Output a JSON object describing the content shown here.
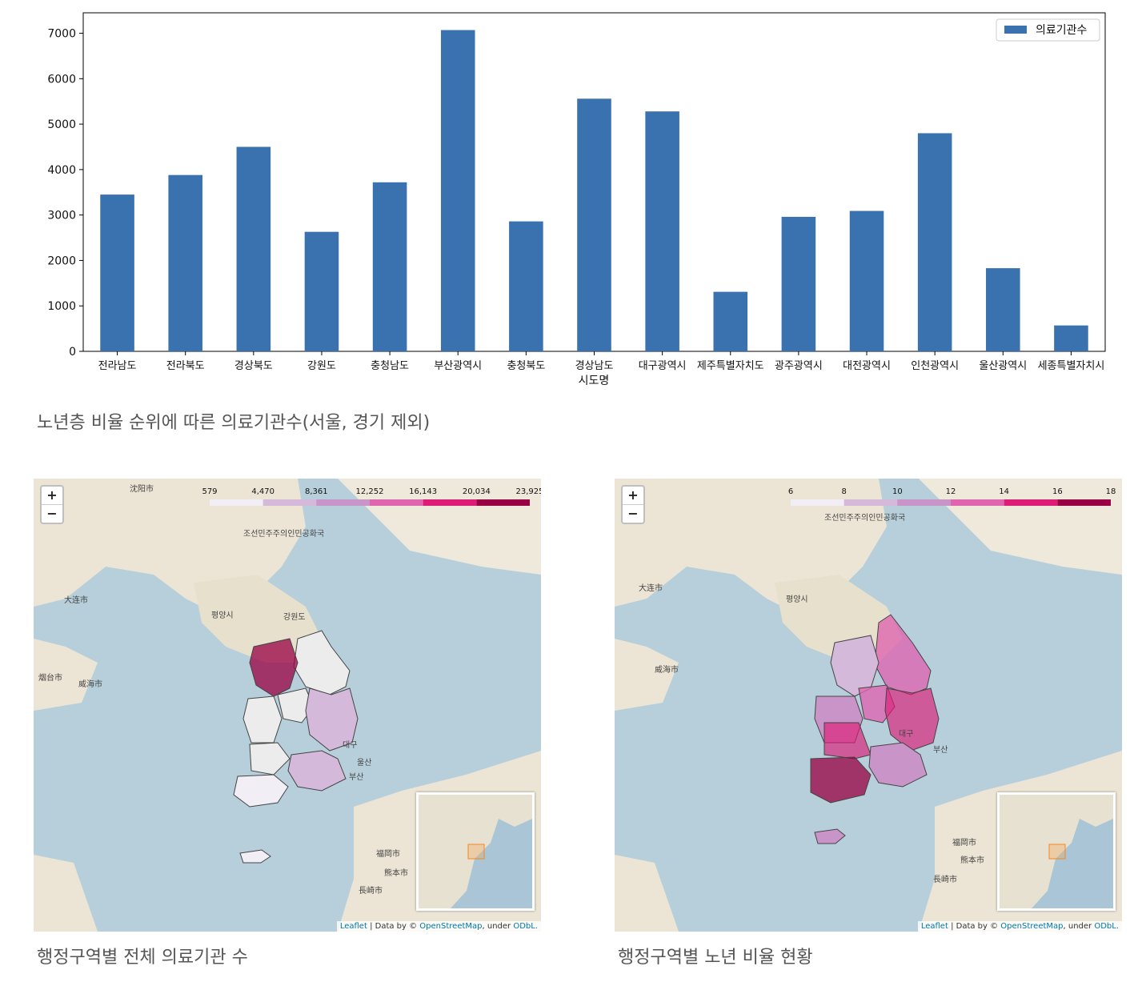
{
  "chart_data": {
    "type": "bar",
    "categories": [
      "전라남도",
      "전라북도",
      "경상북도",
      "강원도",
      "충청남도",
      "부산광역시",
      "충청북도",
      "경상남도",
      "대구광역시",
      "제주특별자치도",
      "광주광역시",
      "대전광역시",
      "인천광역시",
      "울산광역시",
      "세종특별자치시"
    ],
    "series": [
      {
        "name": "의료기관수",
        "values": [
          3450,
          3880,
          4500,
          2630,
          3720,
          7070,
          2860,
          5560,
          5280,
          1310,
          2960,
          3090,
          4800,
          1830,
          570
        ]
      }
    ],
    "xlabel": "시도명",
    "ylabel": "",
    "ylim": [
      0,
      7450
    ],
    "yticks": [
      0,
      1000,
      2000,
      3000,
      4000,
      5000,
      6000,
      7000
    ],
    "legend_position": "top-right",
    "grid": false,
    "bar_color": "#3a72b0"
  },
  "captions": {
    "bar": "노년층 비율 순위에 따른 의료기관수(서울, 경기 제외)",
    "left_map": "행정구역별 전체 의료기관 수",
    "right_map": "행정구역별 노년 비율 현황"
  },
  "maps": {
    "left": {
      "legend_ticks": [
        "579",
        "4,470",
        "8,361",
        "12,252",
        "16,143",
        "20,034",
        "23,925"
      ],
      "legend_colors": [
        "#f1eef6",
        "#d4b9da",
        "#c994c7",
        "#df65b0",
        "#dd1c77",
        "#980043"
      ]
    },
    "right": {
      "legend_ticks": [
        "6",
        "8",
        "10",
        "12",
        "14",
        "16",
        "18"
      ],
      "legend_colors": [
        "#f1eef6",
        "#d4b9da",
        "#c994c7",
        "#df65b0",
        "#dd1c77",
        "#980043"
      ]
    },
    "zoom_in": "+",
    "zoom_out": "−",
    "attribution": {
      "leaflet": "Leaflet",
      "data_by": " | Data by © ",
      "osm": "OpenStreetMap",
      "under": ", under ",
      "odbl": "ODbL."
    },
    "place_labels": [
      "조선민주주의인민공화국",
      "평양시",
      "강원도",
      "부산",
      "대구",
      "울산",
      "福岡市",
      "熊本市",
      "長崎市",
      "沈阳市",
      "大连市",
      "烟台市",
      "威海市"
    ]
  }
}
